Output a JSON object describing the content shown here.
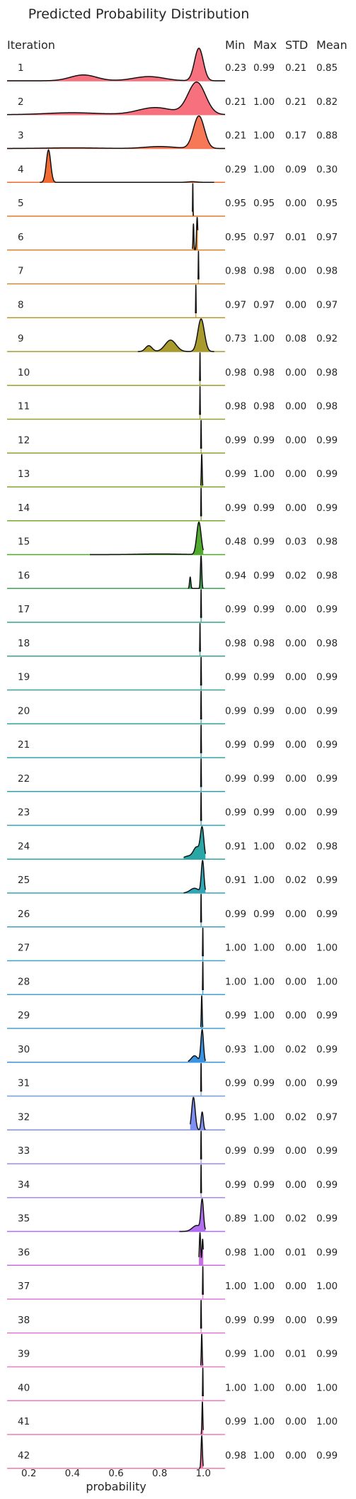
{
  "chart_data": {
    "type": "ridgeline",
    "title": "Predicted Probability Distribution",
    "xlabel": "probability",
    "row_label_header": "Iteration",
    "stat_headers": [
      "Min",
      "Max",
      "STD",
      "Mean"
    ],
    "xlim": [
      0.1,
      1.1
    ],
    "xticks": [
      {
        "value": 0.2,
        "label": "0.2"
      },
      {
        "value": 0.4,
        "label": "0.4"
      },
      {
        "value": 0.6,
        "label": "0.6"
      },
      {
        "value": 0.8,
        "label": "0.8"
      },
      {
        "value": 1.0,
        "label": "1.0"
      }
    ],
    "rows": [
      {
        "iteration": "1",
        "min": "0.23",
        "max": "0.99",
        "std": "0.21",
        "mean": "0.85",
        "color": "#f7707e",
        "peaks": [
          [
            0.98,
            0.02,
            1.0
          ],
          [
            0.45,
            0.06,
            0.18
          ],
          [
            0.75,
            0.07,
            0.13
          ]
        ],
        "support": [
          0.1,
          1.1
        ]
      },
      {
        "iteration": "2",
        "min": "0.21",
        "max": "1.00",
        "std": "0.21",
        "mean": "0.82",
        "color": "#f7707e",
        "peaks": [
          [
            0.97,
            0.04,
            1.0
          ],
          [
            0.78,
            0.08,
            0.22
          ],
          [
            0.4,
            0.12,
            0.06
          ]
        ],
        "support": [
          0.1,
          1.1
        ]
      },
      {
        "iteration": "3",
        "min": "0.21",
        "max": "1.00",
        "std": "0.17",
        "mean": "0.88",
        "color": "#f67856",
        "peaks": [
          [
            0.98,
            0.025,
            1.0
          ],
          [
            0.8,
            0.07,
            0.06
          ],
          [
            0.4,
            0.12,
            0.02
          ]
        ],
        "support": [
          0.1,
          1.1
        ]
      },
      {
        "iteration": "4",
        "min": "0.29",
        "max": "1.00",
        "std": "0.09",
        "mean": "0.30",
        "color": "#f06a32",
        "peaks": [
          [
            0.29,
            0.01,
            1.0
          ],
          [
            0.95,
            0.02,
            0.02
          ]
        ],
        "support": [
          0.25,
          1.05
        ]
      },
      {
        "iteration": "5",
        "min": "0.95",
        "max": "0.95",
        "std": "0.00",
        "mean": "0.95",
        "color": "#e07c2a",
        "peaks": [
          [
            0.952,
            0.001,
            1.0
          ]
        ],
        "support": [
          0.95,
          0.955
        ]
      },
      {
        "iteration": "6",
        "min": "0.95",
        "max": "0.97",
        "std": "0.01",
        "mean": "0.97",
        "color": "#d8852c",
        "peaks": [
          [
            0.955,
            0.002,
            0.8
          ],
          [
            0.972,
            0.003,
            1.0
          ]
        ],
        "support": [
          0.95,
          0.975
        ]
      },
      {
        "iteration": "7",
        "min": "0.98",
        "max": "0.98",
        "std": "0.00",
        "mean": "0.98",
        "color": "#cc8d2c",
        "peaks": [
          [
            0.978,
            0.001,
            1.0
          ]
        ],
        "support": [
          0.976,
          0.98
        ]
      },
      {
        "iteration": "8",
        "min": "0.97",
        "max": "0.97",
        "std": "0.00",
        "mean": "0.97",
        "color": "#c0942c",
        "peaks": [
          [
            0.966,
            0.001,
            1.0
          ]
        ],
        "support": [
          0.964,
          0.968
        ]
      },
      {
        "iteration": "9",
        "min": "0.73",
        "max": "1.00",
        "std": "0.08",
        "mean": "0.92",
        "color": "#a99a2d",
        "peaks": [
          [
            0.99,
            0.015,
            1.0
          ],
          [
            0.85,
            0.025,
            0.35
          ],
          [
            0.75,
            0.015,
            0.18
          ]
        ],
        "support": [
          0.7,
          1.05
        ]
      },
      {
        "iteration": "10",
        "min": "0.98",
        "max": "0.98",
        "std": "0.00",
        "mean": "0.98",
        "color": "#a09d2c",
        "peaks": [
          [
            0.985,
            0.001,
            1.0
          ]
        ],
        "support": [
          0.983,
          0.987
        ]
      },
      {
        "iteration": "11",
        "min": "0.98",
        "max": "0.98",
        "std": "0.00",
        "mean": "0.98",
        "color": "#96a02c",
        "peaks": [
          [
            0.985,
            0.001,
            1.0
          ]
        ],
        "support": [
          0.983,
          0.987
        ]
      },
      {
        "iteration": "12",
        "min": "0.99",
        "max": "0.99",
        "std": "0.00",
        "mean": "0.99",
        "color": "#8da32c",
        "peaks": [
          [
            0.99,
            0.001,
            1.0
          ]
        ],
        "support": [
          0.988,
          0.992
        ]
      },
      {
        "iteration": "13",
        "min": "0.99",
        "max": "1.00",
        "std": "0.00",
        "mean": "0.99",
        "color": "#84a62c",
        "peaks": [
          [
            0.993,
            0.002,
            1.0
          ]
        ],
        "support": [
          0.988,
          0.998
        ]
      },
      {
        "iteration": "14",
        "min": "0.99",
        "max": "0.99",
        "std": "0.00",
        "mean": "0.99",
        "color": "#7aa92c",
        "peaks": [
          [
            0.99,
            0.001,
            1.0
          ]
        ],
        "support": [
          0.988,
          0.992
        ]
      },
      {
        "iteration": "15",
        "min": "0.48",
        "max": "0.99",
        "std": "0.03",
        "mean": "0.98",
        "color": "#51a92e",
        "peaks": [
          [
            0.98,
            0.01,
            1.0
          ],
          [
            0.8,
            0.1,
            0.02
          ]
        ],
        "support": [
          0.48,
          1.0
        ]
      },
      {
        "iteration": "16",
        "min": "0.94",
        "max": "0.99",
        "std": "0.02",
        "mean": "0.98",
        "color": "#3da650",
        "peaks": [
          [
            0.99,
            0.003,
            1.0
          ],
          [
            0.94,
            0.003,
            0.35
          ]
        ],
        "support": [
          0.93,
          1.0
        ]
      },
      {
        "iteration": "17",
        "min": "0.99",
        "max": "0.99",
        "std": "0.00",
        "mean": "0.99",
        "color": "#33a585",
        "peaks": [
          [
            0.99,
            0.001,
            1.0
          ]
        ],
        "support": [
          0.988,
          0.992
        ]
      },
      {
        "iteration": "18",
        "min": "0.98",
        "max": "0.98",
        "std": "0.00",
        "mean": "0.98",
        "color": "#33a58f",
        "peaks": [
          [
            0.985,
            0.001,
            1.0
          ]
        ],
        "support": [
          0.983,
          0.987
        ]
      },
      {
        "iteration": "19",
        "min": "0.99",
        "max": "0.99",
        "std": "0.00",
        "mean": "0.99",
        "color": "#34a497",
        "peaks": [
          [
            0.99,
            0.001,
            1.0
          ]
        ],
        "support": [
          0.988,
          0.992
        ]
      },
      {
        "iteration": "20",
        "min": "0.99",
        "max": "0.99",
        "std": "0.00",
        "mean": "0.99",
        "color": "#35a39e",
        "peaks": [
          [
            0.99,
            0.001,
            1.0
          ]
        ],
        "support": [
          0.988,
          0.992
        ]
      },
      {
        "iteration": "21",
        "min": "0.99",
        "max": "0.99",
        "std": "0.00",
        "mean": "0.99",
        "color": "#36a3a5",
        "peaks": [
          [
            0.99,
            0.001,
            1.0
          ]
        ],
        "support": [
          0.988,
          0.992
        ]
      },
      {
        "iteration": "22",
        "min": "0.99",
        "max": "0.99",
        "std": "0.00",
        "mean": "0.99",
        "color": "#37a2ab",
        "peaks": [
          [
            0.99,
            0.001,
            1.0
          ]
        ],
        "support": [
          0.988,
          0.992
        ]
      },
      {
        "iteration": "23",
        "min": "0.99",
        "max": "0.99",
        "std": "0.00",
        "mean": "0.99",
        "color": "#38a2b1",
        "peaks": [
          [
            0.99,
            0.001,
            1.0
          ]
        ],
        "support": [
          0.988,
          0.992
        ]
      },
      {
        "iteration": "24",
        "min": "0.91",
        "max": "1.00",
        "std": "0.02",
        "mean": "0.98",
        "color": "#2aa6a6",
        "peaks": [
          [
            0.995,
            0.008,
            1.0
          ],
          [
            0.97,
            0.015,
            0.4
          ],
          [
            0.93,
            0.02,
            0.1
          ]
        ],
        "support": [
          0.91,
          1.01
        ]
      },
      {
        "iteration": "25",
        "min": "0.91",
        "max": "1.00",
        "std": "0.02",
        "mean": "0.99",
        "color": "#30a5b8",
        "peaks": [
          [
            0.997,
            0.006,
            1.0
          ],
          [
            0.96,
            0.02,
            0.15
          ]
        ],
        "support": [
          0.91,
          1.01
        ]
      },
      {
        "iteration": "26",
        "min": "0.99",
        "max": "0.99",
        "std": "0.00",
        "mean": "0.99",
        "color": "#3aa3c0",
        "peaks": [
          [
            0.99,
            0.001,
            1.0
          ]
        ],
        "support": [
          0.988,
          0.992
        ]
      },
      {
        "iteration": "27",
        "min": "1.00",
        "max": "1.00",
        "std": "0.00",
        "mean": "1.00",
        "color": "#3ea2c6",
        "peaks": [
          [
            0.998,
            0.001,
            1.0
          ]
        ],
        "support": [
          0.996,
          1.0
        ]
      },
      {
        "iteration": "28",
        "min": "1.00",
        "max": "1.00",
        "std": "0.00",
        "mean": "1.00",
        "color": "#42a1cc",
        "peaks": [
          [
            0.998,
            0.001,
            1.0
          ]
        ],
        "support": [
          0.996,
          1.0
        ]
      },
      {
        "iteration": "29",
        "min": "0.99",
        "max": "1.00",
        "std": "0.00",
        "mean": "0.99",
        "color": "#45a0d3",
        "peaks": [
          [
            0.993,
            0.002,
            1.0
          ]
        ],
        "support": [
          0.988,
          0.998
        ]
      },
      {
        "iteration": "30",
        "min": "0.93",
        "max": "1.00",
        "std": "0.02",
        "mean": "0.99",
        "color": "#3a93e2",
        "peaks": [
          [
            0.995,
            0.006,
            1.0
          ],
          [
            0.96,
            0.015,
            0.2
          ]
        ],
        "support": [
          0.93,
          1.01
        ]
      },
      {
        "iteration": "31",
        "min": "0.99",
        "max": "0.99",
        "std": "0.00",
        "mean": "0.99",
        "color": "#6f9fe6",
        "peaks": [
          [
            0.99,
            0.001,
            1.0
          ]
        ],
        "support": [
          0.988,
          0.992
        ]
      },
      {
        "iteration": "32",
        "min": "0.95",
        "max": "1.00",
        "std": "0.02",
        "mean": "0.97",
        "color": "#7e8ef2",
        "peaks": [
          [
            0.955,
            0.008,
            1.0
          ],
          [
            0.995,
            0.005,
            0.55
          ]
        ],
        "support": [
          0.94,
          1.01
        ]
      },
      {
        "iteration": "33",
        "min": "0.99",
        "max": "0.99",
        "std": "0.00",
        "mean": "0.99",
        "color": "#9a8cee",
        "peaks": [
          [
            0.99,
            0.001,
            1.0
          ]
        ],
        "support": [
          0.988,
          0.992
        ]
      },
      {
        "iteration": "34",
        "min": "0.99",
        "max": "0.99",
        "std": "0.00",
        "mean": "0.99",
        "color": "#a98aee",
        "peaks": [
          [
            0.99,
            0.001,
            1.0
          ]
        ],
        "support": [
          0.988,
          0.992
        ]
      },
      {
        "iteration": "35",
        "min": "0.89",
        "max": "1.00",
        "std": "0.02",
        "mean": "0.99",
        "color": "#b26ef0",
        "peaks": [
          [
            0.995,
            0.006,
            1.0
          ],
          [
            0.97,
            0.02,
            0.2
          ]
        ],
        "support": [
          0.89,
          1.01
        ]
      },
      {
        "iteration": "36",
        "min": "0.98",
        "max": "1.00",
        "std": "0.01",
        "mean": "0.99",
        "color": "#c96fe2",
        "peaks": [
          [
            0.985,
            0.003,
            1.0
          ],
          [
            0.997,
            0.003,
            0.8
          ]
        ],
        "support": [
          0.98,
          1.0
        ]
      },
      {
        "iteration": "37",
        "min": "1.00",
        "max": "1.00",
        "std": "0.00",
        "mean": "1.00",
        "color": "#e07ad8",
        "peaks": [
          [
            0.998,
            0.001,
            1.0
          ]
        ],
        "support": [
          0.996,
          1.0
        ]
      },
      {
        "iteration": "38",
        "min": "0.99",
        "max": "0.99",
        "std": "0.00",
        "mean": "0.99",
        "color": "#e77ad0",
        "peaks": [
          [
            0.99,
            0.001,
            1.0
          ]
        ],
        "support": [
          0.988,
          0.992
        ]
      },
      {
        "iteration": "39",
        "min": "0.99",
        "max": "1.00",
        "std": "0.01",
        "mean": "0.99",
        "color": "#ec7ac8",
        "peaks": [
          [
            0.993,
            0.002,
            1.0
          ]
        ],
        "support": [
          0.988,
          0.998
        ]
      },
      {
        "iteration": "40",
        "min": "1.00",
        "max": "1.00",
        "std": "0.00",
        "mean": "1.00",
        "color": "#ef7bbf",
        "peaks": [
          [
            0.998,
            0.001,
            1.0
          ]
        ],
        "support": [
          0.996,
          1.0
        ]
      },
      {
        "iteration": "41",
        "min": "0.99",
        "max": "1.00",
        "std": "0.00",
        "mean": "1.00",
        "color": "#f27bb5",
        "peaks": [
          [
            0.996,
            0.002,
            1.0
          ]
        ],
        "support": [
          0.99,
          1.0
        ]
      },
      {
        "iteration": "42",
        "min": "0.98",
        "max": "1.00",
        "std": "0.00",
        "mean": "0.99",
        "color": "#f47aa9",
        "peaks": [
          [
            0.993,
            0.003,
            1.0
          ]
        ],
        "support": [
          0.98,
          1.0
        ]
      }
    ]
  }
}
